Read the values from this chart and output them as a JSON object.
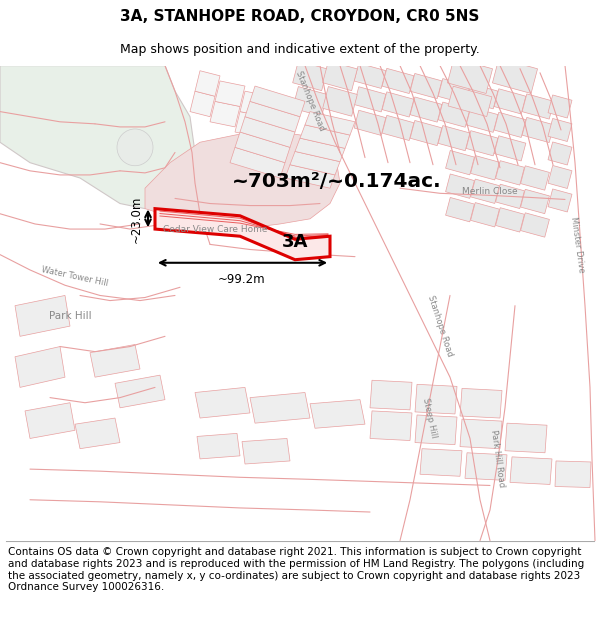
{
  "title": "3A, STANHOPE ROAD, CROYDON, CR0 5NS",
  "subtitle": "Map shows position and indicative extent of the property.",
  "footer": "Contains OS data © Crown copyright and database right 2021. This information is subject to Crown copyright and database rights 2023 and is reproduced with the permission of HM Land Registry. The polygons (including the associated geometry, namely x, y co-ordinates) are subject to Crown copyright and database rights 2023 Ordnance Survey 100026316.",
  "area_text": "~703m²/~0.174ac.",
  "width_text": "~99.2m",
  "height_text": "~23.0m",
  "label_3a": "3A",
  "map_bg": "#f7f0f0",
  "road_color": "#e8a0a0",
  "building_fill": "#d8d8d8",
  "building_edge": "#e8a0a0",
  "green_fill": "#e8f0e8",
  "green_edge": "#d0c8c8",
  "pink_fill": "#f0dede",
  "highlight_stroke": "#dd0000",
  "title_fontsize": 11,
  "subtitle_fontsize": 9,
  "footer_fontsize": 7.5,
  "label_color": "#888888"
}
